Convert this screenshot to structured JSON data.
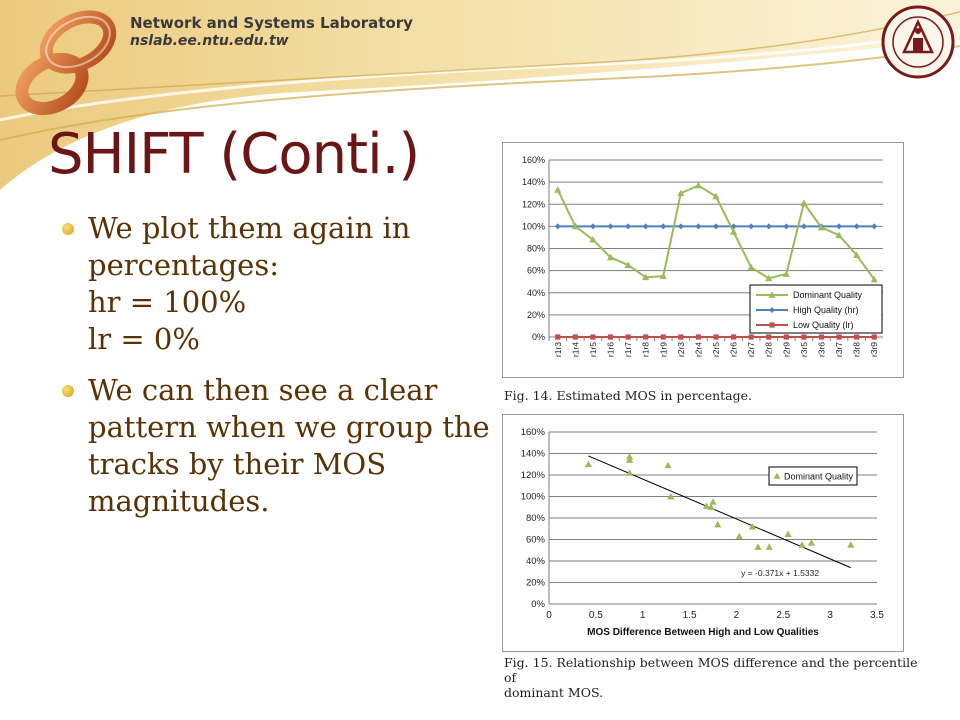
{
  "header": {
    "lab_name": "Network and Systems Laboratory",
    "lab_url": "nslab.ee.ntu.edu.tw",
    "logo_icon": "infinity-logo-icon",
    "seal_icon": "university-seal-icon"
  },
  "title": "SHIFT (Conti.)",
  "bullets": [
    {
      "lines": [
        "We plot them again in",
        "percentages:",
        "hr = 100%",
        "lr = 0%"
      ]
    },
    {
      "lines": [
        "We can then see a clear",
        "pattern when we group the",
        "tracks by their MOS",
        "magnitudes."
      ]
    }
  ],
  "colors": {
    "title": "#6b1616",
    "body_text": "#5a3206",
    "dominant": "#9bbb59",
    "high": "#4f81bd",
    "low": "#c0504d",
    "header_band": "#e6c26a"
  },
  "captions": {
    "fig14": "Fig. 14. Estimated MOS in percentage.",
    "fig15_line1": "Fig. 15. Relationship between MOS difference and the percentile of",
    "fig15_line2": "dominant MOS."
  },
  "chart_data": [
    {
      "type": "line",
      "categories": [
        "r1r3",
        "r1r4",
        "r1r5",
        "r1r6",
        "r1r7",
        "r1r8",
        "r1r9",
        "r2r3",
        "r2r4",
        "r2r5",
        "r2r6",
        "r2r7",
        "r2r8",
        "r2r9",
        "r3r5",
        "r3r6",
        "r3r7",
        "r3r8",
        "r3r9"
      ],
      "ylim": [
        0,
        160
      ],
      "yticks": [
        "0%",
        "20%",
        "40%",
        "60%",
        "80%",
        "100%",
        "120%",
        "140%",
        "160%"
      ],
      "grid": true,
      "legend_position": "bottom-right",
      "series": [
        {
          "name": "Dominant Quality",
          "values": [
            133,
            100,
            88,
            72,
            65,
            54,
            55,
            130,
            137,
            127,
            95,
            63,
            53,
            57,
            121,
            99,
            92,
            74,
            52
          ]
        },
        {
          "name": "High Quality (hr)",
          "values": [
            100,
            100,
            100,
            100,
            100,
            100,
            100,
            100,
            100,
            100,
            100,
            100,
            100,
            100,
            100,
            100,
            100,
            100,
            100
          ]
        },
        {
          "name": "Low Quality (lr)",
          "values": [
            0,
            0,
            0,
            0,
            0,
            0,
            0,
            0,
            0,
            0,
            0,
            0,
            0,
            0,
            0,
            0,
            0,
            0,
            0
          ]
        }
      ]
    },
    {
      "type": "scatter",
      "xlabel": "MOS Difference Between High and Low Qualities",
      "xlim": [
        0,
        3.5
      ],
      "xticks": [
        "0",
        "0.5",
        "1",
        "1.5",
        "2",
        "2.5",
        "3",
        "3.5"
      ],
      "ylim": [
        0,
        160
      ],
      "yticks": [
        "0%",
        "20%",
        "40%",
        "60%",
        "80%",
        "100%",
        "120%",
        "140%",
        "160%"
      ],
      "grid": true,
      "legend_position": "top-right",
      "series": [
        {
          "name": "Dominant Quality",
          "x": [
            0.42,
            0.86,
            0.86,
            0.86,
            1.27,
            1.3,
            1.68,
            1.73,
            1.75,
            1.8,
            2.03,
            2.17,
            2.23,
            2.35,
            2.55,
            2.7,
            2.8,
            3.22
          ],
          "y": [
            130,
            137,
            134,
            122,
            129,
            100,
            91,
            90,
            95,
            74,
            63,
            72,
            53,
            53,
            65,
            55,
            57,
            55
          ]
        }
      ],
      "trendline": {
        "slope": -0.371,
        "intercept": 1.5332,
        "x_from": 0.42,
        "x_to": 3.22,
        "label": "y = -0.371x + 1.5332"
      }
    }
  ]
}
